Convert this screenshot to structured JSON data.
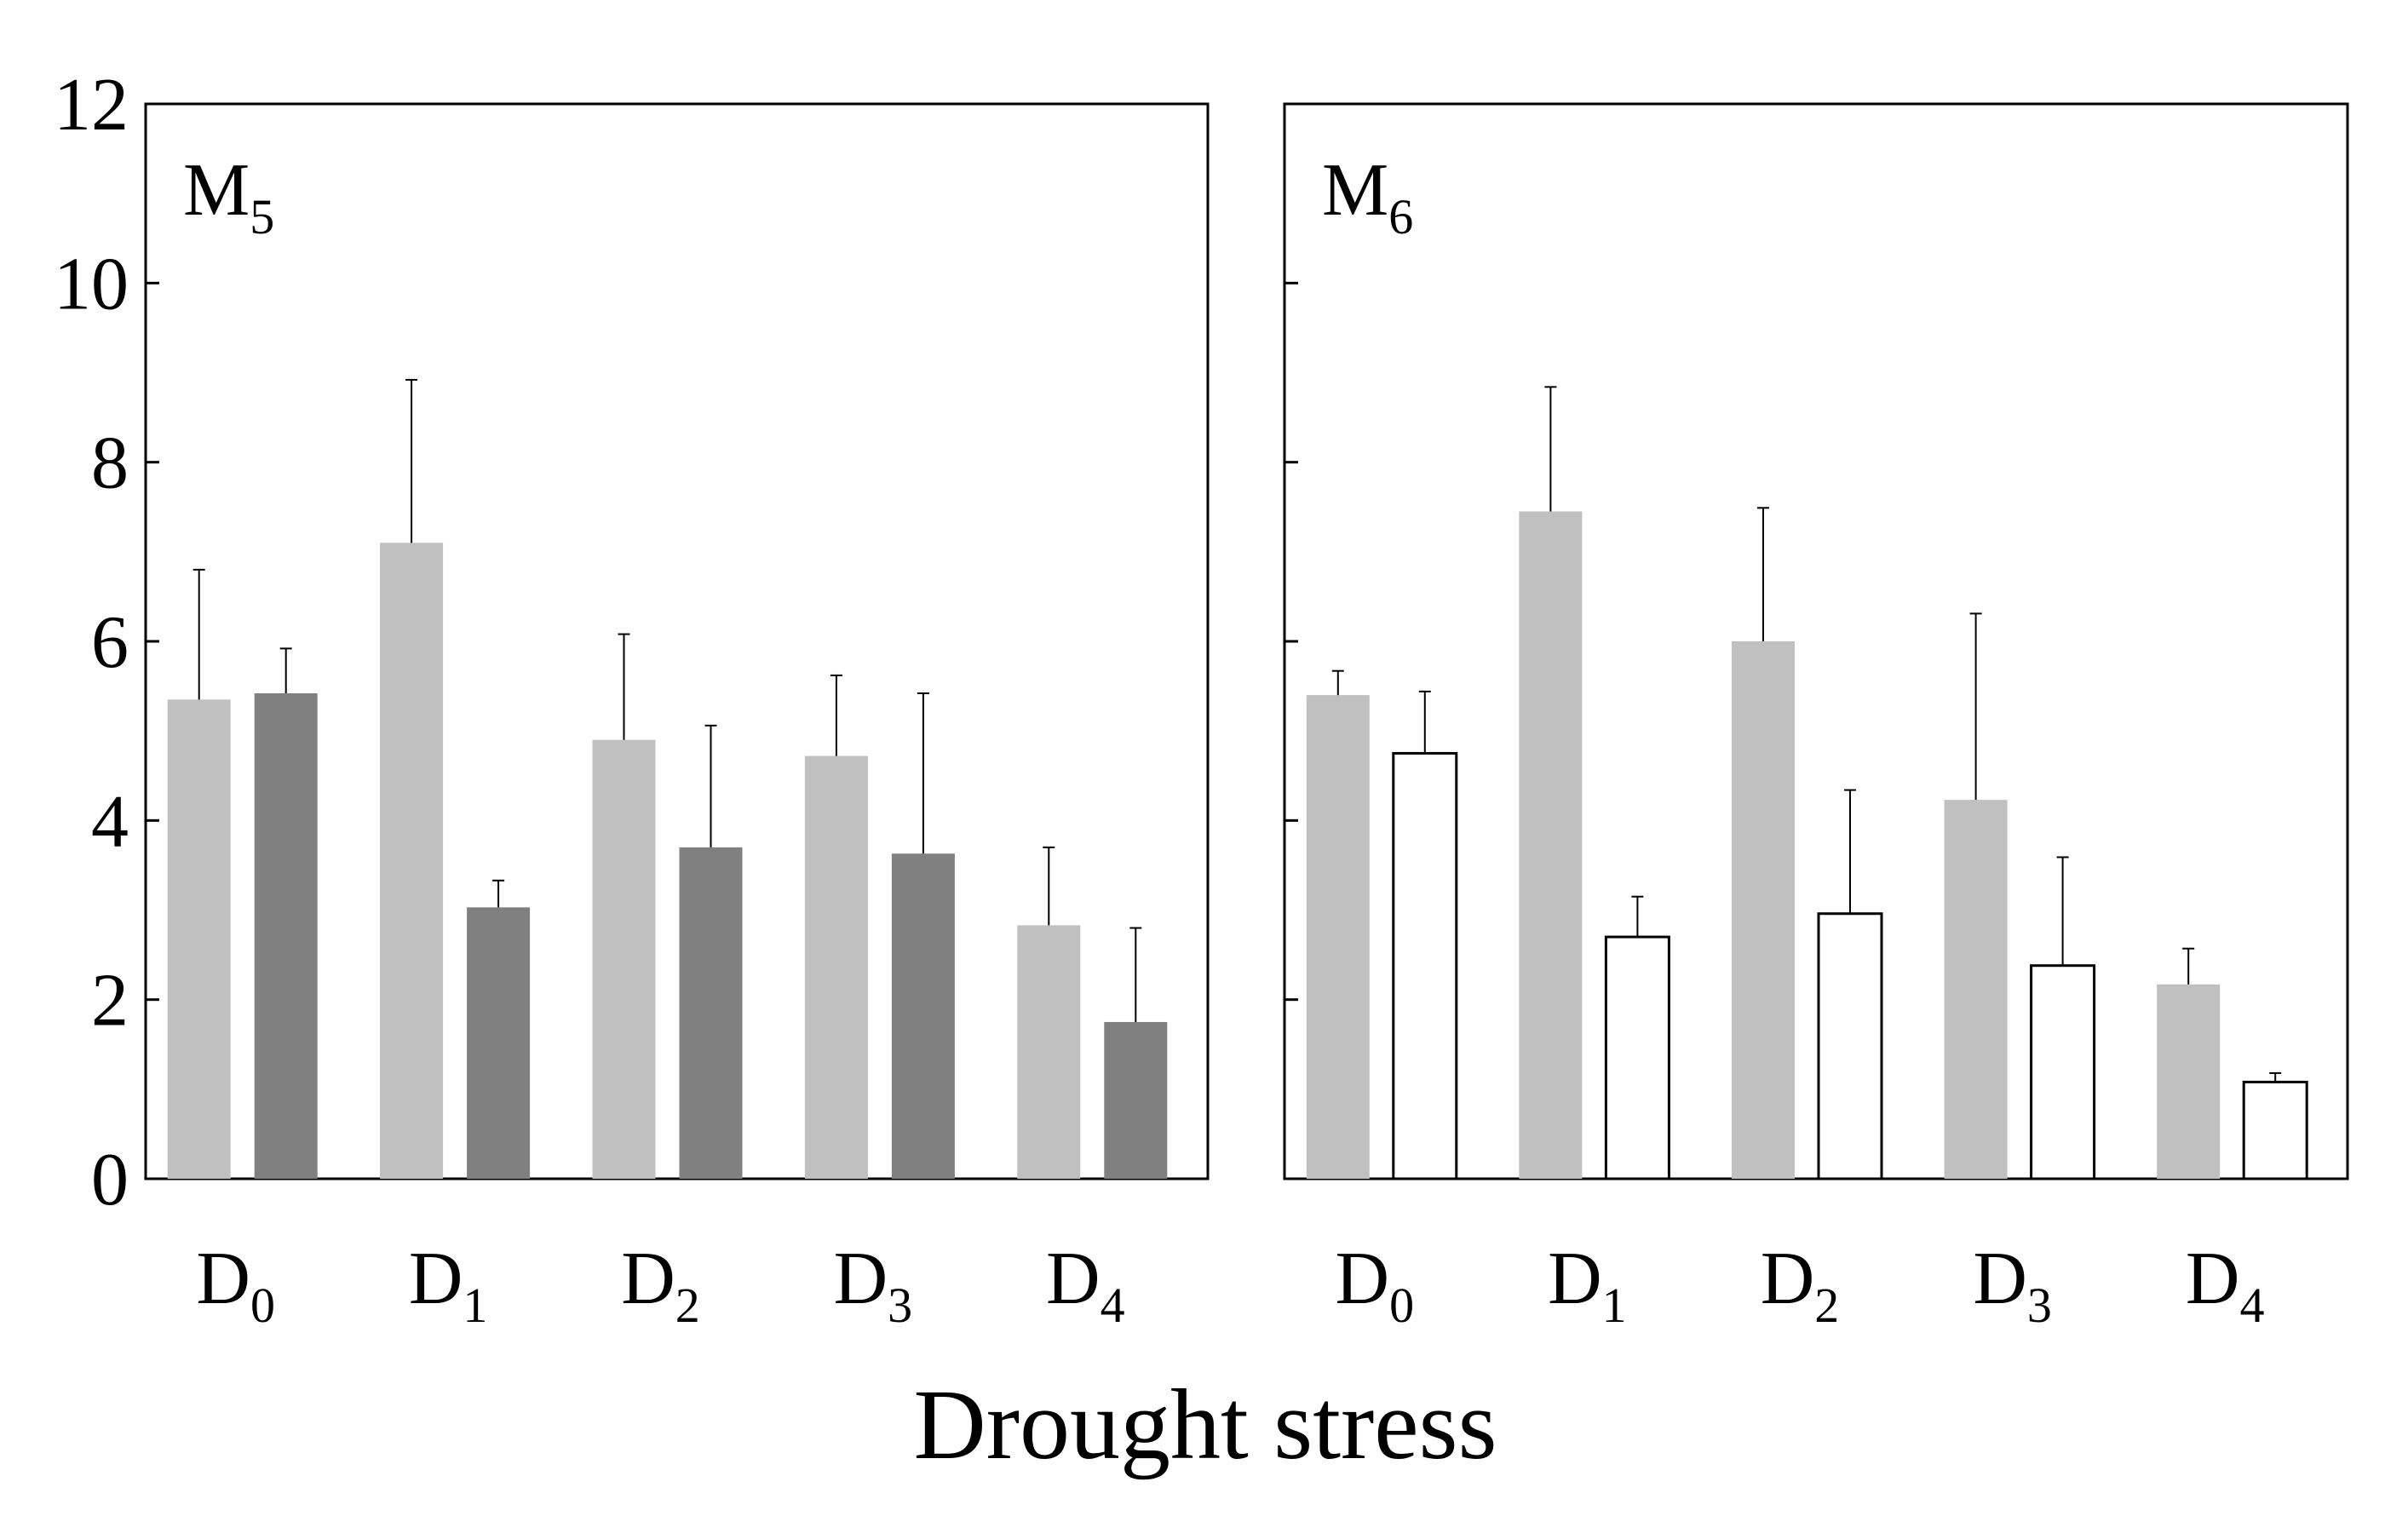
{
  "chart_data": {
    "type": "bar",
    "xlabel": "Drought stress",
    "ylim": [
      0,
      12
    ],
    "yticks": [
      0,
      2,
      4,
      6,
      8,
      10,
      12
    ],
    "category_letter": "D",
    "categories": [
      {
        "letter": "D",
        "sub": "0"
      },
      {
        "letter": "D",
        "sub": "1"
      },
      {
        "letter": "D",
        "sub": "2"
      },
      {
        "letter": "D",
        "sub": "3"
      },
      {
        "letter": "D",
        "sub": "4"
      }
    ],
    "panels": [
      {
        "label": "M",
        "label_sub": "5",
        "show_tick_labels": true,
        "series": [
          {
            "name": "light",
            "color": "#c0c0c0",
            "stroke": "none",
            "values": [
              5.35,
              7.1,
              4.9,
              4.72,
              2.83
            ],
            "errors": [
              1.45,
              1.82,
              1.18,
              0.9,
              0.87
            ]
          },
          {
            "name": "dark",
            "color": "#808080",
            "stroke": "none",
            "values": [
              5.42,
              3.03,
              3.7,
              3.63,
              1.75
            ],
            "errors": [
              0.5,
              0.3,
              1.36,
              1.79,
              1.05
            ]
          }
        ]
      },
      {
        "label": "M",
        "label_sub": "6",
        "show_tick_labels": false,
        "series": [
          {
            "name": "light",
            "color": "#c0c0c0",
            "stroke": "none",
            "values": [
              5.4,
              7.45,
              6.0,
              4.23,
              2.17
            ],
            "errors": [
              0.27,
              1.39,
              1.49,
              2.08,
              0.4
            ]
          },
          {
            "name": "open",
            "color": "#ffffff",
            "stroke": "#000000",
            "values": [
              4.75,
              2.7,
              2.96,
              2.38,
              1.08
            ],
            "errors": [
              0.69,
              0.45,
              1.38,
              1.21,
              0.1
            ]
          }
        ]
      }
    ]
  }
}
